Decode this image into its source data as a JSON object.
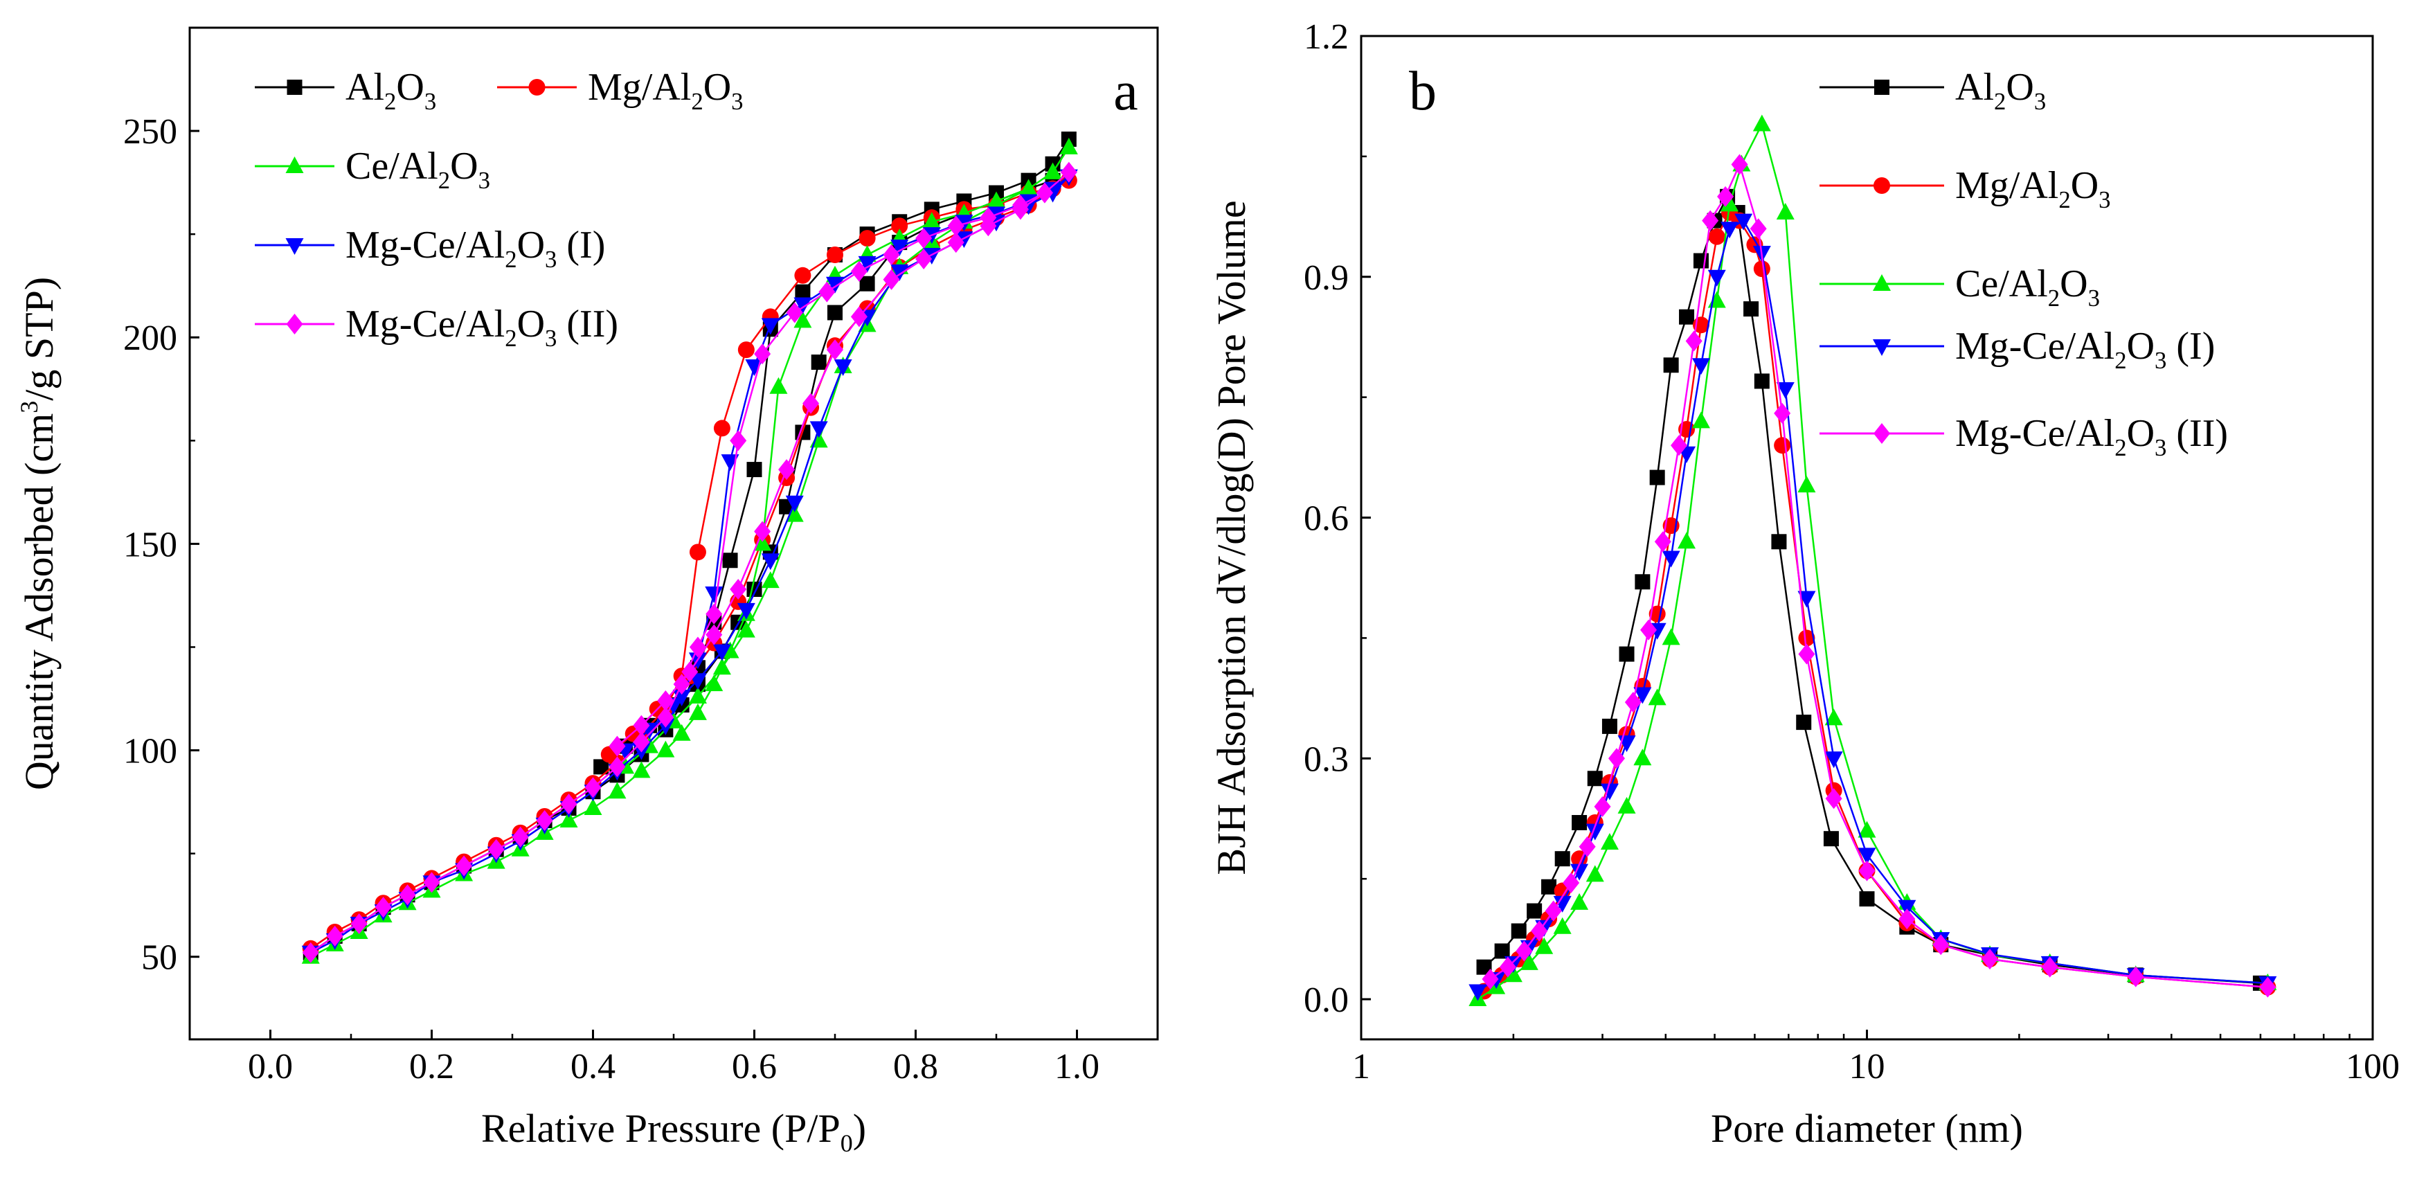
{
  "colors": {
    "Al2O3": "#000000",
    "Mg/Al2O3": "#ff0000",
    "Ce/Al2O3": "#00ee00",
    "Mg-Ce/Al2O3 (I)": "#0000ff",
    "Mg-Ce/Al2O3 (II)": "#ff00ff"
  },
  "markers": {
    "Al2O3": "square",
    "Mg/Al2O3": "circle",
    "Ce/Al2O3": "triangle-up",
    "Mg-Ce/Al2O3 (I)": "triangle-down",
    "Mg-Ce/Al2O3 (II)": "diamond"
  },
  "legend_rich": {
    "Al2O3": [
      [
        "Al",
        "n"
      ],
      [
        "2",
        "sub"
      ],
      [
        "O",
        "n"
      ],
      [
        "3",
        "sub"
      ]
    ],
    "Mg/Al2O3": [
      [
        "Mg/Al",
        "n"
      ],
      [
        "2",
        "sub"
      ],
      [
        "O",
        "n"
      ],
      [
        "3",
        "sub"
      ]
    ],
    "Ce/Al2O3": [
      [
        "Ce/Al",
        "n"
      ],
      [
        "2",
        "sub"
      ],
      [
        "O",
        "n"
      ],
      [
        "3",
        "sub"
      ]
    ],
    "Mg-Ce/Al2O3 (I)": [
      [
        "Mg-Ce/Al",
        "n"
      ],
      [
        "2",
        "sub"
      ],
      [
        "O",
        "n"
      ],
      [
        "3",
        "sub"
      ],
      [
        " (I)",
        "n"
      ]
    ],
    "Mg-Ce/Al2O3 (II)": [
      [
        "Mg-Ce/Al",
        "n"
      ],
      [
        "2",
        "sub"
      ],
      [
        "O",
        "n"
      ],
      [
        "3",
        "sub"
      ],
      [
        " (II)",
        "n"
      ]
    ]
  },
  "chart_data": [
    {
      "panel": "a",
      "type": "line",
      "xlabel": "Relative Pressure (P/P0)",
      "xlabel_rich": [
        [
          "Relative Pressure (P/P",
          "n"
        ],
        [
          "0",
          "sub"
        ],
        [
          ")",
          "n"
        ]
      ],
      "ylabel": "Quantity Adsorbed (cm3/g STP)",
      "ylabel_rich": [
        [
          "Quantity Adsorbed (cm",
          "n"
        ],
        [
          "3",
          "sup"
        ],
        [
          "/g STP)",
          "n"
        ]
      ],
      "xlim": [
        -0.1,
        1.1
      ],
      "ylim": [
        30,
        275
      ],
      "x_ticks": [
        0.0,
        0.2,
        0.4,
        0.6,
        0.8,
        1.0
      ],
      "x_tick_labels": [
        "0.0",
        "0.2",
        "0.4",
        "0.6",
        "0.8",
        "1.0"
      ],
      "y_ticks": [
        50,
        100,
        150,
        200,
        250
      ],
      "y_tick_labels": [
        "50",
        "100",
        "150",
        "200",
        "250"
      ],
      "legend": [
        "Al2O3",
        "Mg/Al2O3",
        "Ce/Al2O3",
        "Mg-Ce/Al2O3 (I)",
        "Mg-Ce/Al2O3 (II)"
      ],
      "legend_location": "top-left",
      "series": [
        {
          "name": "Al2O3",
          "x": [
            0.05,
            0.08,
            0.11,
            0.14,
            0.17,
            0.2,
            0.24,
            0.28,
            0.31,
            0.34,
            0.37,
            0.4,
            0.43,
            0.46,
            0.49,
            0.51,
            0.53,
            0.55,
            0.57,
            0.6,
            0.62,
            0.66,
            0.7,
            0.74,
            0.78,
            0.82,
            0.86,
            0.9,
            0.94,
            0.97,
            0.99,
            0.97,
            0.94,
            0.9,
            0.86,
            0.82,
            0.78,
            0.74,
            0.7,
            0.68,
            0.66,
            0.64,
            0.62,
            0.6,
            0.58,
            0.56,
            0.53,
            0.5,
            0.47,
            0.44,
            0.41
          ],
          "y": [
            51,
            55,
            58,
            62,
            65,
            68,
            72,
            76,
            79,
            83,
            86,
            90,
            94,
            99,
            105,
            111,
            120,
            131,
            146,
            168,
            202,
            211,
            220,
            225,
            228,
            231,
            233,
            235,
            238,
            242,
            248,
            238,
            236,
            233,
            230,
            227,
            223,
            213,
            206,
            194,
            177,
            159,
            148,
            139,
            131,
            124,
            116,
            111,
            106,
            101,
            96
          ]
        },
        {
          "name": "Mg/Al2O3",
          "x": [
            0.05,
            0.08,
            0.11,
            0.14,
            0.17,
            0.2,
            0.24,
            0.28,
            0.31,
            0.34,
            0.37,
            0.4,
            0.43,
            0.46,
            0.49,
            0.51,
            0.53,
            0.56,
            0.59,
            0.62,
            0.66,
            0.7,
            0.74,
            0.78,
            0.82,
            0.86,
            0.9,
            0.94,
            0.97,
            0.99,
            0.97,
            0.94,
            0.9,
            0.86,
            0.82,
            0.78,
            0.74,
            0.7,
            0.67,
            0.64,
            0.61,
            0.58,
            0.55,
            0.52,
            0.48,
            0.45,
            0.42
          ],
          "y": [
            52,
            56,
            59,
            63,
            66,
            69,
            73,
            77,
            80,
            84,
            88,
            92,
            97,
            104,
            110,
            118,
            148,
            178,
            197,
            205,
            215,
            220,
            224,
            227,
            229,
            231,
            232,
            235,
            236,
            238,
            236,
            232,
            229,
            226,
            222,
            217,
            207,
            198,
            183,
            166,
            151,
            136,
            126,
            118,
            110,
            104,
            99
          ]
        },
        {
          "name": "Ce/Al2O3",
          "x": [
            0.05,
            0.08,
            0.11,
            0.14,
            0.17,
            0.2,
            0.24,
            0.28,
            0.31,
            0.34,
            0.37,
            0.4,
            0.43,
            0.46,
            0.49,
            0.51,
            0.53,
            0.55,
            0.57,
            0.59,
            0.61,
            0.63,
            0.66,
            0.7,
            0.74,
            0.78,
            0.82,
            0.86,
            0.9,
            0.94,
            0.97,
            0.99,
            0.97,
            0.94,
            0.9,
            0.86,
            0.82,
            0.78,
            0.74,
            0.71,
            0.68,
            0.65,
            0.62,
            0.59,
            0.56,
            0.53,
            0.5,
            0.47,
            0.44
          ],
          "y": [
            50,
            53,
            56,
            60,
            63,
            66,
            70,
            73,
            76,
            80,
            83,
            86,
            90,
            95,
            100,
            104,
            109,
            116,
            124,
            133,
            150,
            188,
            204,
            215,
            220,
            224,
            228,
            230,
            233,
            236,
            240,
            246,
            240,
            236,
            232,
            228,
            223,
            217,
            203,
            193,
            175,
            157,
            141,
            129,
            120,
            113,
            107,
            101,
            96
          ]
        },
        {
          "name": "Mg-Ce/Al2O3 (I)",
          "x": [
            0.05,
            0.08,
            0.11,
            0.14,
            0.17,
            0.2,
            0.24,
            0.28,
            0.31,
            0.34,
            0.37,
            0.4,
            0.43,
            0.46,
            0.49,
            0.51,
            0.53,
            0.55,
            0.57,
            0.6,
            0.62,
            0.66,
            0.7,
            0.74,
            0.78,
            0.82,
            0.86,
            0.9,
            0.94,
            0.97,
            0.99,
            0.97,
            0.94,
            0.9,
            0.86,
            0.82,
            0.78,
            0.74,
            0.71,
            0.68,
            0.65,
            0.62,
            0.59,
            0.56,
            0.53,
            0.5,
            0.47,
            0.44
          ],
          "y": [
            51,
            54,
            58,
            61,
            64,
            68,
            71,
            75,
            78,
            82,
            86,
            90,
            95,
            100,
            106,
            113,
            122,
            138,
            170,
            193,
            203,
            208,
            213,
            218,
            222,
            225,
            228,
            230,
            233,
            236,
            239,
            235,
            232,
            228,
            224,
            220,
            216,
            205,
            193,
            178,
            160,
            146,
            134,
            124,
            117,
            111,
            105,
            100
          ]
        },
        {
          "name": "Mg-Ce/Al2O3 (II)",
          "x": [
            0.05,
            0.08,
            0.11,
            0.14,
            0.17,
            0.2,
            0.24,
            0.28,
            0.31,
            0.34,
            0.37,
            0.4,
            0.43,
            0.46,
            0.49,
            0.51,
            0.53,
            0.55,
            0.58,
            0.61,
            0.65,
            0.69,
            0.73,
            0.77,
            0.81,
            0.85,
            0.89,
            0.93,
            0.96,
            0.99,
            0.96,
            0.93,
            0.89,
            0.85,
            0.81,
            0.77,
            0.73,
            0.7,
            0.67,
            0.64,
            0.61,
            0.58,
            0.55,
            0.52,
            0.49,
            0.46,
            0.43
          ],
          "y": [
            51,
            55,
            58,
            62,
            65,
            68,
            72,
            76,
            79,
            83,
            87,
            91,
            96,
            102,
            108,
            116,
            125,
            133,
            175,
            196,
            206,
            211,
            216,
            220,
            224,
            227,
            229,
            232,
            235,
            240,
            235,
            231,
            227,
            223,
            219,
            214,
            205,
            197,
            184,
            168,
            153,
            139,
            128,
            119,
            112,
            106,
            101
          ]
        }
      ]
    },
    {
      "panel": "b",
      "type": "line",
      "xscale": "log",
      "xlabel": "Pore diameter (nm)",
      "ylabel": "BJH Adsorption dV/dlog(D) Pore Volume",
      "xlim": [
        1,
        100
      ],
      "ylim": [
        -0.05,
        1.2
      ],
      "x_ticks": [
        1,
        10,
        100
      ],
      "x_tick_labels": [
        "1",
        "10",
        "100"
      ],
      "y_ticks": [
        0.0,
        0.3,
        0.6,
        0.9,
        1.2
      ],
      "y_tick_labels": [
        "0.0",
        "0.3",
        "0.6",
        "0.9",
        "1.2"
      ],
      "legend": [
        "Al2O3",
        "Mg/Al2O3",
        "Ce/Al2O3",
        "Mg-Ce/Al2O3 (I)",
        "Mg-Ce/Al2O3 (II)"
      ],
      "legend_location": "top-right",
      "series": [
        {
          "name": "Al2O3",
          "x": [
            1.75,
            1.9,
            2.05,
            2.2,
            2.35,
            2.5,
            2.7,
            2.9,
            3.1,
            3.35,
            3.6,
            3.85,
            4.1,
            4.4,
            4.7,
            5.0,
            5.3,
            5.55,
            5.9,
            6.2,
            6.7,
            7.5,
            8.5,
            10,
            12,
            14,
            17.5,
            23,
            34,
            60
          ],
          "y": [
            0.04,
            0.06,
            0.085,
            0.11,
            0.14,
            0.175,
            0.22,
            0.275,
            0.34,
            0.43,
            0.52,
            0.65,
            0.79,
            0.85,
            0.92,
            0.97,
            1.0,
            0.98,
            0.86,
            0.77,
            0.57,
            0.345,
            0.2,
            0.125,
            0.09,
            0.068,
            0.055,
            0.043,
            0.03,
            0.02
          ]
        },
        {
          "name": "Mg/Al2O3",
          "x": [
            1.75,
            1.9,
            2.05,
            2.2,
            2.35,
            2.5,
            2.7,
            2.9,
            3.1,
            3.35,
            3.6,
            3.85,
            4.1,
            4.4,
            4.7,
            5.05,
            5.35,
            5.6,
            6.0,
            6.2,
            6.8,
            7.6,
            8.6,
            10,
            12,
            14,
            17.5,
            23,
            34,
            62
          ],
          "y": [
            0.01,
            0.03,
            0.05,
            0.075,
            0.1,
            0.135,
            0.175,
            0.22,
            0.27,
            0.33,
            0.39,
            0.48,
            0.59,
            0.71,
            0.84,
            0.95,
            0.98,
            0.97,
            0.94,
            0.91,
            0.69,
            0.45,
            0.26,
            0.16,
            0.095,
            0.068,
            0.05,
            0.04,
            0.028,
            0.015
          ]
        },
        {
          "name": "Ce/Al2O3",
          "x": [
            1.7,
            1.85,
            2.0,
            2.15,
            2.3,
            2.5,
            2.7,
            2.9,
            3.1,
            3.35,
            3.6,
            3.85,
            4.1,
            4.4,
            4.7,
            5.05,
            5.35,
            5.65,
            6.2,
            6.9,
            7.6,
            8.6,
            10,
            12,
            14,
            17.5,
            23,
            34,
            62
          ],
          "y": [
            0.0,
            0.015,
            0.03,
            0.045,
            0.065,
            0.09,
            0.12,
            0.155,
            0.195,
            0.24,
            0.3,
            0.375,
            0.45,
            0.57,
            0.72,
            0.87,
            0.99,
            1.04,
            1.09,
            0.98,
            0.64,
            0.35,
            0.21,
            0.12,
            0.075,
            0.055,
            0.045,
            0.03,
            0.02
          ]
        },
        {
          "name": "Mg-Ce/Al2O3 (I)",
          "x": [
            1.7,
            1.85,
            2.0,
            2.15,
            2.3,
            2.5,
            2.7,
            2.9,
            3.1,
            3.35,
            3.6,
            3.85,
            4.1,
            4.4,
            4.7,
            5.05,
            5.35,
            5.7,
            6.2,
            6.9,
            7.6,
            8.6,
            10,
            12,
            14,
            17.5,
            23,
            34,
            62
          ],
          "y": [
            0.01,
            0.025,
            0.045,
            0.065,
            0.09,
            0.12,
            0.16,
            0.21,
            0.26,
            0.32,
            0.38,
            0.46,
            0.55,
            0.68,
            0.79,
            0.9,
            0.96,
            0.97,
            0.93,
            0.76,
            0.5,
            0.3,
            0.18,
            0.115,
            0.075,
            0.056,
            0.045,
            0.03,
            0.02
          ]
        },
        {
          "name": "Mg-Ce/Al2O3 (II)",
          "x": [
            1.8,
            1.95,
            2.1,
            2.25,
            2.4,
            2.6,
            2.8,
            3.0,
            3.2,
            3.45,
            3.7,
            3.95,
            4.25,
            4.55,
            4.9,
            5.25,
            5.6,
            6.1,
            6.8,
            7.6,
            8.6,
            10,
            12,
            14,
            17.5,
            23,
            34,
            62
          ],
          "y": [
            0.025,
            0.04,
            0.06,
            0.085,
            0.11,
            0.145,
            0.19,
            0.24,
            0.3,
            0.37,
            0.46,
            0.57,
            0.69,
            0.82,
            0.97,
            1.0,
            1.04,
            0.96,
            0.73,
            0.43,
            0.25,
            0.16,
            0.1,
            0.068,
            0.05,
            0.04,
            0.028,
            0.015
          ]
        }
      ]
    }
  ]
}
